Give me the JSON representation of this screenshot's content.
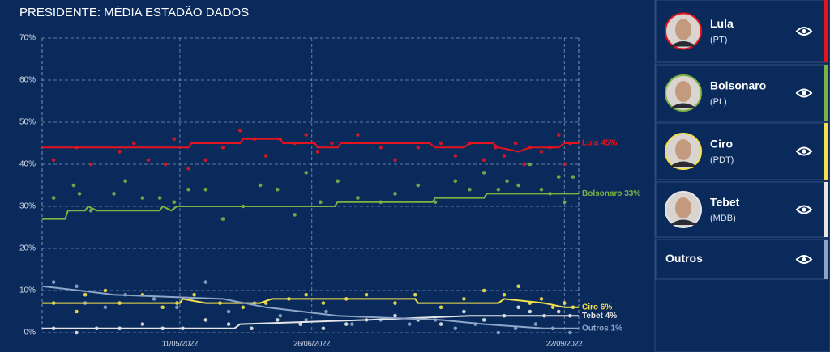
{
  "chart_data": {
    "type": "line",
    "title": "PRESIDENTE: MÉDIA ESTADÃO DADOS",
    "xlim": [
      "24/03/2022",
      "27/09/2022"
    ],
    "xticks": [
      "11/05/2022",
      "26/06/2022",
      "22/09/2022"
    ],
    "ylim": [
      0,
      70
    ],
    "yticks": [
      {
        "value": 0,
        "label": "0%"
      },
      {
        "value": 10,
        "label": "10%"
      },
      {
        "value": 20,
        "label": "20%"
      },
      {
        "value": 30,
        "label": "30%"
      },
      {
        "value": 40,
        "label": "40%"
      },
      {
        "value": 50,
        "label": "50%"
      },
      {
        "value": 60,
        "label": "60%"
      },
      {
        "value": 70,
        "label": "70%"
      }
    ],
    "grid": true,
    "series": [
      {
        "name": "Lula",
        "party": "(PT)",
        "color": "#e3141e",
        "end_label": "Lula 45%",
        "x": [
          "24/03/2022",
          "14/05/2022",
          "15/05/2022",
          "01/06/2022",
          "02/06/2022",
          "15/06/2022",
          "16/06/2022",
          "27/06/2022",
          "28/06/2022",
          "05/07/2022",
          "06/07/2022",
          "06/08/2022",
          "08/08/2022",
          "18/08/2022",
          "20/08/2022",
          "28/08/2022",
          "30/08/2022",
          "06/09/2022",
          "10/09/2022",
          "20/09/2022",
          "22/09/2022",
          "27/09/2022"
        ],
        "values": [
          44,
          44,
          45,
          45,
          46,
          46,
          45,
          45,
          44,
          44,
          45,
          45,
          44,
          44,
          45,
          45,
          44,
          43,
          44,
          44,
          45,
          45
        ],
        "polls": {
          "x": [
            "28/03/2022",
            "05/04/2022",
            "10/04/2022",
            "20/04/2022",
            "25/04/2022",
            "30/04/2022",
            "06/05/2022",
            "09/05/2022",
            "14/05/2022",
            "20/05/2022",
            "26/05/2022",
            "01/06/2022",
            "06/06/2022",
            "10/06/2022",
            "15/06/2022",
            "20/06/2022",
            "24/06/2022",
            "28/06/2022",
            "03/07/2022",
            "12/07/2022",
            "20/07/2022",
            "25/07/2022",
            "02/08/2022",
            "10/08/2022",
            "15/08/2022",
            "20/08/2022",
            "25/08/2022",
            "29/08/2022",
            "01/09/2022",
            "05/09/2022",
            "08/09/2022",
            "10/09/2022",
            "14/09/2022",
            "17/09/2022",
            "20/09/2022",
            "22/09/2022",
            "24/09/2022"
          ],
          "values": [
            41,
            44,
            40,
            43,
            45,
            41,
            40,
            46,
            39,
            41,
            44,
            48,
            46,
            42,
            46,
            45,
            47,
            43,
            45,
            47,
            44,
            41,
            44,
            45,
            42,
            45,
            41,
            44,
            42,
            45,
            40,
            44,
            43,
            44,
            47,
            40,
            45
          ]
        }
      },
      {
        "name": "Bolsonaro",
        "party": "(PL)",
        "color": "#7cb342",
        "end_label": "Bolsonaro 33%",
        "x": [
          "24/03/2022",
          "01/04/2022",
          "02/04/2022",
          "08/04/2022",
          "09/04/2022",
          "12/04/2022",
          "04/05/2022",
          "05/05/2022",
          "08/05/2022",
          "10/05/2022",
          "04/07/2022",
          "05/07/2022",
          "07/08/2022",
          "08/08/2022",
          "25/08/2022",
          "26/08/2022",
          "27/09/2022"
        ],
        "values": [
          27,
          27,
          29,
          29,
          30,
          29,
          29,
          30,
          29,
          30,
          30,
          31,
          31,
          32,
          32,
          33,
          33
        ],
        "polls": {
          "x": [
            "28/03/2022",
            "04/04/2022",
            "06/04/2022",
            "10/04/2022",
            "18/04/2022",
            "22/04/2022",
            "28/04/2022",
            "04/05/2022",
            "09/05/2022",
            "14/05/2022",
            "20/05/2022",
            "26/05/2022",
            "02/06/2022",
            "08/06/2022",
            "14/06/2022",
            "20/06/2022",
            "24/06/2022",
            "29/06/2022",
            "05/07/2022",
            "12/07/2022",
            "20/07/2022",
            "25/07/2022",
            "02/08/2022",
            "08/08/2022",
            "15/08/2022",
            "20/08/2022",
            "25/08/2022",
            "30/08/2022",
            "02/09/2022",
            "06/09/2022",
            "10/09/2022",
            "14/09/2022",
            "17/09/2022",
            "20/09/2022",
            "22/09/2022",
            "25/09/2022"
          ],
          "values": [
            32,
            35,
            33,
            29,
            33,
            36,
            32,
            32,
            31,
            34,
            34,
            27,
            30,
            35,
            34,
            28,
            38,
            31,
            36,
            32,
            31,
            33,
            35,
            31,
            36,
            34,
            38,
            34,
            36,
            35,
            40,
            34,
            33,
            37,
            31,
            37
          ]
        }
      },
      {
        "name": "Ciro",
        "party": "(PDT)",
        "color": "#f2e14c",
        "end_label": "Ciro 6%",
        "x": [
          "24/03/2022",
          "11/05/2022",
          "12/05/2022",
          "20/05/2022",
          "08/06/2022",
          "12/06/2022",
          "01/08/2022",
          "02/08/2022",
          "30/08/2022",
          "01/09/2022",
          "15/09/2022",
          "22/09/2022",
          "27/09/2022"
        ],
        "values": [
          7,
          7,
          8,
          7,
          7,
          8,
          8,
          7,
          7,
          8,
          7,
          6,
          6
        ],
        "polls": {
          "x": [
            "28/03/2022",
            "05/04/2022",
            "08/04/2022",
            "15/04/2022",
            "20/04/2022",
            "28/04/2022",
            "05/05/2022",
            "10/05/2022",
            "16/05/2022",
            "25/05/2022",
            "02/06/2022",
            "10/06/2022",
            "18/06/2022",
            "24/06/2022",
            "30/06/2022",
            "08/07/2022",
            "15/07/2022",
            "25/07/2022",
            "01/08/2022",
            "10/08/2022",
            "18/08/2022",
            "25/08/2022",
            "01/09/2022",
            "06/09/2022",
            "10/09/2022",
            "14/09/2022",
            "18/09/2022",
            "22/09/2022",
            "25/09/2022"
          ],
          "values": [
            7,
            5,
            9,
            10,
            7,
            9,
            6,
            7,
            9,
            7,
            6,
            7,
            8,
            9,
            7,
            8,
            9,
            7,
            9,
            6,
            8,
            10,
            9,
            11,
            7,
            8,
            6,
            7,
            6
          ]
        }
      },
      {
        "name": "Tebet",
        "party": "(MDB)",
        "color": "#e6e6e6",
        "end_label": "Tebet 4%",
        "x": [
          "24/03/2022",
          "30/05/2022",
          "01/06/2022",
          "15/07/2022",
          "20/08/2022",
          "27/09/2022"
        ],
        "values": [
          1,
          1,
          2,
          3,
          4,
          4
        ],
        "polls": {
          "x": [
            "28/03/2022",
            "05/04/2022",
            "12/04/2022",
            "20/04/2022",
            "28/04/2022",
            "05/05/2022",
            "12/05/2022",
            "20/05/2022",
            "28/05/2022",
            "05/06/2022",
            "14/06/2022",
            "22/06/2022",
            "30/06/2022",
            "08/07/2022",
            "15/07/2022",
            "25/07/2022",
            "02/08/2022",
            "10/08/2022",
            "18/08/2022",
            "25/08/2022",
            "01/09/2022",
            "06/09/2022",
            "10/09/2022",
            "15/09/2022",
            "20/09/2022",
            "24/09/2022"
          ],
          "values": [
            1,
            0,
            1,
            1,
            2,
            1,
            1,
            3,
            2,
            1,
            3,
            2,
            1,
            2,
            3,
            4,
            3,
            2,
            5,
            3,
            4,
            6,
            5,
            4,
            5,
            4
          ]
        }
      },
      {
        "name": "Outros",
        "color": "#8fa5c8",
        "end_label": "Outros 1%",
        "x": [
          "24/03/2022",
          "06/04/2022",
          "18/04/2022",
          "26/05/2022",
          "10/06/2022",
          "05/07/2022",
          "10/08/2022",
          "25/08/2022",
          "15/09/2022",
          "27/09/2022"
        ],
        "values": [
          11,
          10,
          9,
          8,
          6,
          4,
          3,
          2,
          1,
          1
        ],
        "polls": {
          "x": [
            "28/03/2022",
            "05/04/2022",
            "08/04/2022",
            "15/04/2022",
            "22/04/2022",
            "02/05/2022",
            "10/05/2022",
            "15/05/2022",
            "20/05/2022",
            "28/05/2022",
            "06/06/2022",
            "15/06/2022",
            "24/06/2022",
            "01/07/2022",
            "10/07/2022",
            "20/07/2022",
            "30/07/2022",
            "08/08/2022",
            "15/08/2022",
            "22/08/2022",
            "30/08/2022",
            "05/09/2022",
            "12/09/2022",
            "18/09/2022",
            "24/09/2022"
          ],
          "values": [
            12,
            11,
            7,
            6,
            9,
            8,
            6,
            8,
            12,
            5,
            7,
            4,
            3,
            5,
            2,
            3,
            2,
            3,
            1,
            2,
            0,
            1,
            2,
            1,
            0
          ]
        }
      }
    ]
  }
}
